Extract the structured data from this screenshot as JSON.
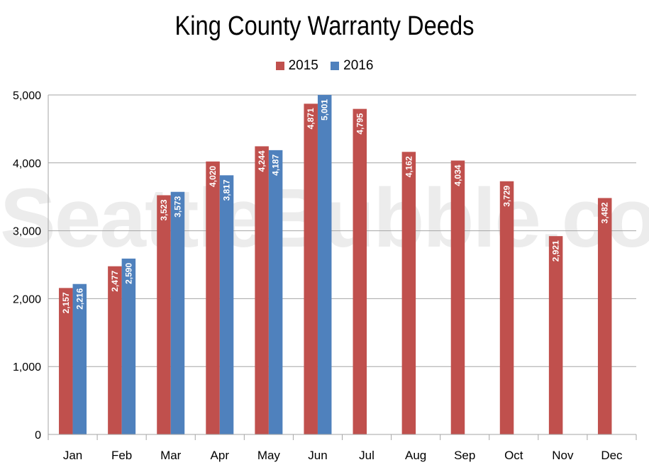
{
  "chart_data": {
    "type": "bar",
    "title": "King County Warranty Deeds",
    "xlabel": "",
    "ylabel": "",
    "categories": [
      "Jan",
      "Feb",
      "Mar",
      "Apr",
      "May",
      "Jun",
      "Jul",
      "Aug",
      "Sep",
      "Oct",
      "Nov",
      "Dec"
    ],
    "series": [
      {
        "name": "2015",
        "color": "#c0504d",
        "values": [
          2157,
          2477,
          3523,
          4020,
          4244,
          4871,
          4795,
          4162,
          4034,
          3729,
          2921,
          3482
        ],
        "labels": [
          "2,157",
          "2,477",
          "3,523",
          "4,020",
          "4,244",
          "4,871",
          "4,795",
          "4,162",
          "4,034",
          "3,729",
          "2,921",
          "3,482"
        ]
      },
      {
        "name": "2016",
        "color": "#4f81bd",
        "values": [
          2216,
          2590,
          3573,
          3817,
          4187,
          5001,
          null,
          null,
          null,
          null,
          null,
          null
        ],
        "labels": [
          "2,216",
          "2,590",
          "3,573",
          "3,817",
          "4,187",
          "5,001",
          "",
          "",
          "",
          "",
          "",
          ""
        ]
      }
    ],
    "ylim": [
      0,
      5000
    ],
    "yticks": [
      0,
      1000,
      2000,
      3000,
      4000,
      5000
    ],
    "ytick_labels": [
      "0",
      "1,000",
      "2,000",
      "3,000",
      "4,000",
      "5,000"
    ],
    "grid": true,
    "legend_position": "top-center",
    "watermark": "SeattleBubble.com"
  }
}
